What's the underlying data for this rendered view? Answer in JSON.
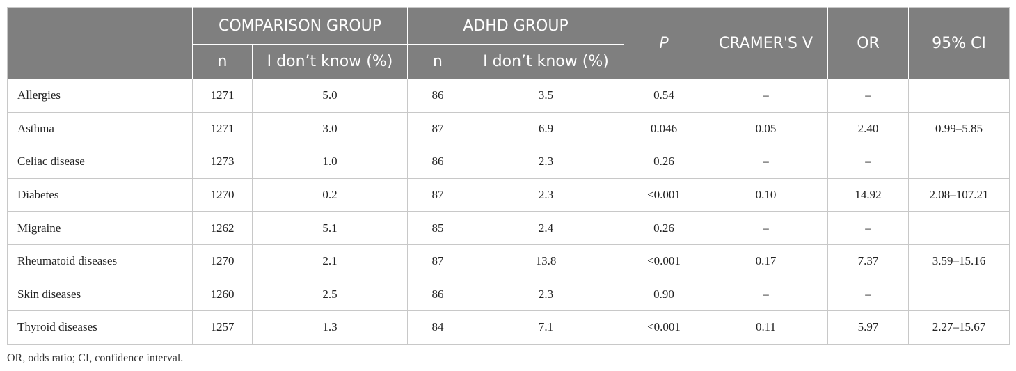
{
  "header": {
    "comparison_group": "COMPARISON GROUP",
    "adhd_group": "ADHD GROUP",
    "p": "P",
    "cramers_v": "CRAMER'S V",
    "or": "OR",
    "ci": "95% CI",
    "n": "n",
    "dont_know": "I don’t know (%)"
  },
  "rows": [
    {
      "label": "Allergies",
      "comp_n": "1271",
      "comp_pct": "5.0",
      "adhd_n": "86",
      "adhd_pct": "3.5",
      "p": "0.54",
      "v": "–",
      "or": "–",
      "ci": ""
    },
    {
      "label": "Asthma",
      "comp_n": "1271",
      "comp_pct": "3.0",
      "adhd_n": "87",
      "adhd_pct": "6.9",
      "p": "0.046",
      "v": "0.05",
      "or": "2.40",
      "ci": "0.99–5.85"
    },
    {
      "label": "Celiac disease",
      "comp_n": "1273",
      "comp_pct": "1.0",
      "adhd_n": "86",
      "adhd_pct": "2.3",
      "p": "0.26",
      "v": "–",
      "or": "–",
      "ci": ""
    },
    {
      "label": "Diabetes",
      "comp_n": "1270",
      "comp_pct": "0.2",
      "adhd_n": "87",
      "adhd_pct": "2.3",
      "p": "<0.001",
      "v": "0.10",
      "or": "14.92",
      "ci": "2.08–107.21"
    },
    {
      "label": "Migraine",
      "comp_n": "1262",
      "comp_pct": "5.1",
      "adhd_n": "85",
      "adhd_pct": "2.4",
      "p": "0.26",
      "v": "–",
      "or": "–",
      "ci": ""
    },
    {
      "label": "Rheumatoid diseases",
      "comp_n": "1270",
      "comp_pct": "2.1",
      "adhd_n": "87",
      "adhd_pct": "13.8",
      "p": "<0.001",
      "v": "0.17",
      "or": "7.37",
      "ci": "3.59–15.16"
    },
    {
      "label": "Skin diseases",
      "comp_n": "1260",
      "comp_pct": "2.5",
      "adhd_n": "86",
      "adhd_pct": "2.3",
      "p": "0.90",
      "v": "–",
      "or": "–",
      "ci": ""
    },
    {
      "label": "Thyroid diseases",
      "comp_n": "1257",
      "comp_pct": "1.3",
      "adhd_n": "84",
      "adhd_pct": "7.1",
      "p": "<0.001",
      "v": "0.11",
      "or": "5.97",
      "ci": "2.27–15.67"
    }
  ],
  "footnote": "OR, odds ratio; CI, confidence interval."
}
